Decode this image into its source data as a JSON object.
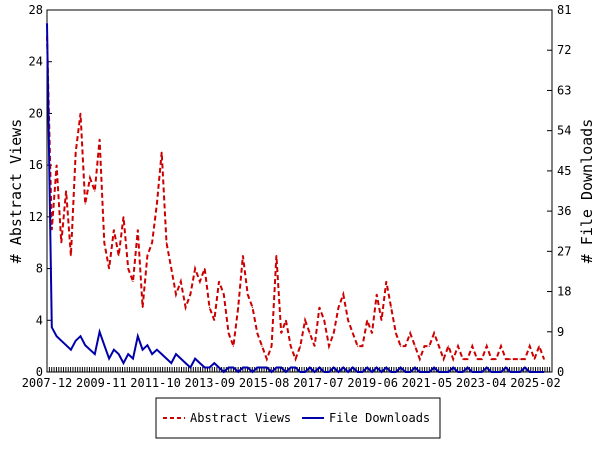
{
  "chart_data": {
    "type": "line",
    "title": "",
    "xlabel": "",
    "ylabel_left": "# Abstract Views",
    "ylabel_right": "# File Downloads",
    "x_tick_labels": [
      "2007-12",
      "2009-11",
      "2011-10",
      "2013-09",
      "2015-08",
      "2017-07",
      "2019-06",
      "2021-05",
      "2023-04",
      "2025-02"
    ],
    "ylim_left": [
      0,
      28
    ],
    "yticks_left": [
      0,
      4,
      8,
      12,
      16,
      20,
      24,
      28
    ],
    "ylim_right": [
      0,
      81
    ],
    "yticks_right": [
      0,
      9,
      18,
      27,
      36,
      45,
      54,
      63,
      72,
      81
    ],
    "x": [
      "2007-12",
      "2008-02",
      "2008-04",
      "2008-06",
      "2008-08",
      "2008-10",
      "2008-12",
      "2009-02",
      "2009-04",
      "2009-06",
      "2009-08",
      "2009-10",
      "2009-12",
      "2010-02",
      "2010-04",
      "2010-06",
      "2010-08",
      "2010-10",
      "2010-12",
      "2011-02",
      "2011-04",
      "2011-06",
      "2011-08",
      "2011-10",
      "2011-12",
      "2012-02",
      "2012-04",
      "2012-06",
      "2012-08",
      "2012-10",
      "2012-12",
      "2013-02",
      "2013-04",
      "2013-06",
      "2013-08",
      "2013-10",
      "2013-12",
      "2014-02",
      "2014-04",
      "2014-06",
      "2014-08",
      "2014-10",
      "2014-12",
      "2015-02",
      "2015-04",
      "2015-06",
      "2015-08",
      "2015-10",
      "2015-12",
      "2016-02",
      "2016-04",
      "2016-06",
      "2016-08",
      "2016-10",
      "2016-12",
      "2017-02",
      "2017-04",
      "2017-06",
      "2017-08",
      "2017-10",
      "2017-12",
      "2018-02",
      "2018-04",
      "2018-06",
      "2018-08",
      "2018-10",
      "2018-12",
      "2019-02",
      "2019-04",
      "2019-06",
      "2019-08",
      "2019-10",
      "2019-12",
      "2020-02",
      "2020-04",
      "2020-06",
      "2020-08",
      "2020-10",
      "2020-12",
      "2021-02",
      "2021-04",
      "2021-06",
      "2021-08",
      "2021-10",
      "2021-12",
      "2022-02",
      "2022-04",
      "2022-06",
      "2022-08",
      "2022-10",
      "2022-12",
      "2023-02",
      "2023-04",
      "2023-06",
      "2023-08",
      "2023-10",
      "2023-12",
      "2024-02",
      "2024-04",
      "2024-06",
      "2024-08",
      "2024-10",
      "2024-12",
      "2025-02",
      "2025-04"
    ],
    "series": [
      {
        "name": "Abstract Views",
        "axis": "left",
        "color": "#cc0000",
        "style": "dashed",
        "values": [
          26,
          11,
          16,
          10,
          14,
          9,
          17,
          20,
          13,
          15,
          14,
          18,
          10,
          8,
          11,
          9,
          12,
          8,
          7,
          11,
          5,
          9,
          10,
          13,
          17,
          10,
          8,
          6,
          7,
          5,
          6,
          8,
          7,
          8,
          5,
          4,
          7,
          6,
          3,
          2,
          5,
          9,
          6,
          5,
          3,
          2,
          1,
          2,
          9,
          3,
          4,
          2,
          1,
          2,
          4,
          3,
          2,
          5,
          4,
          2,
          3,
          5,
          6,
          4,
          3,
          2,
          2,
          4,
          3,
          6,
          4,
          7,
          5,
          3,
          2,
          2,
          3,
          2,
          1,
          2,
          2,
          3,
          2,
          1,
          2,
          1,
          2,
          1,
          1,
          2,
          1,
          1,
          2,
          1,
          1,
          2,
          1,
          1,
          1,
          1,
          1,
          2,
          1,
          2,
          1
        ]
      },
      {
        "name": "File Downloads",
        "axis": "right",
        "color": "#0000aa",
        "style": "solid",
        "values": [
          78,
          10,
          8,
          7,
          6,
          5,
          7,
          8,
          6,
          5,
          4,
          9,
          6,
          3,
          5,
          4,
          2,
          4,
          3,
          8,
          5,
          6,
          4,
          5,
          4,
          3,
          2,
          4,
          3,
          2,
          1,
          3,
          2,
          1,
          1,
          2,
          1,
          0,
          1,
          1,
          0,
          1,
          1,
          0,
          1,
          1,
          1,
          0,
          1,
          1,
          0,
          1,
          1,
          0,
          0,
          1,
          0,
          1,
          0,
          0,
          1,
          0,
          1,
          0,
          1,
          0,
          0,
          1,
          0,
          1,
          0,
          1,
          0,
          0,
          1,
          0,
          0,
          1,
          0,
          0,
          0,
          1,
          0,
          0,
          0,
          1,
          0,
          0,
          1,
          0,
          0,
          0,
          1,
          0,
          0,
          0,
          1,
          0,
          0,
          0,
          1,
          0,
          0,
          0,
          0
        ]
      }
    ],
    "legend_position": "bottom",
    "grid": false
  }
}
